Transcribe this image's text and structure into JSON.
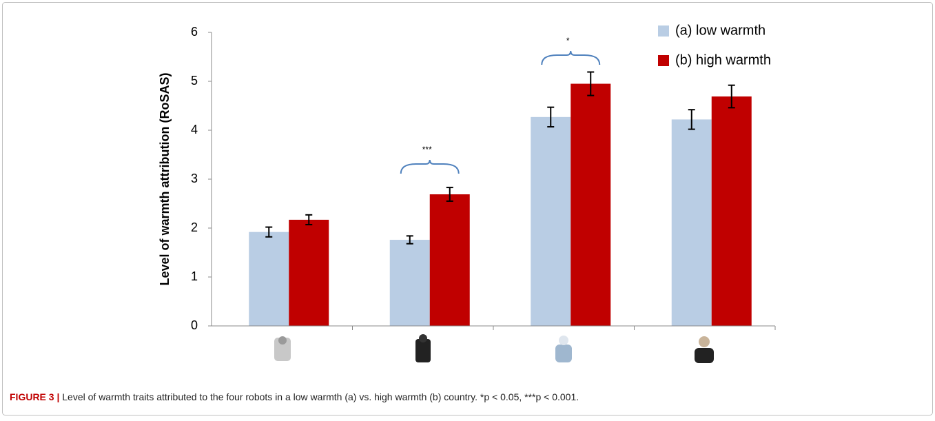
{
  "chart_data": {
    "type": "bar",
    "y_label": "Level of warmth attribution (RoSAS)",
    "categories": [
      null,
      null,
      null,
      null
    ],
    "series": [
      {
        "name": "(a) low warmth",
        "color": "#b9cde4",
        "values": [
          1.92,
          1.76,
          4.27,
          4.22
        ],
        "errors": [
          0.1,
          0.08,
          0.2,
          0.2
        ]
      },
      {
        "name": "(b) high warmth",
        "color": "#c00000",
        "values": [
          2.17,
          2.69,
          4.95,
          4.69
        ],
        "errors": [
          0.1,
          0.14,
          0.24,
          0.23
        ]
      }
    ],
    "ylim": [
      0,
      6
    ],
    "yticks": [
      0,
      1,
      2,
      3,
      4,
      5,
      6
    ],
    "annotations": [
      "***",
      "*"
    ],
    "caption_label": "FIGURE 3 |",
    "caption": "Level of warmth traits attributed to the four robots in a low warmth (a) vs. high warmth (b) country. *p < 0.05, ***p < 0.001."
  }
}
